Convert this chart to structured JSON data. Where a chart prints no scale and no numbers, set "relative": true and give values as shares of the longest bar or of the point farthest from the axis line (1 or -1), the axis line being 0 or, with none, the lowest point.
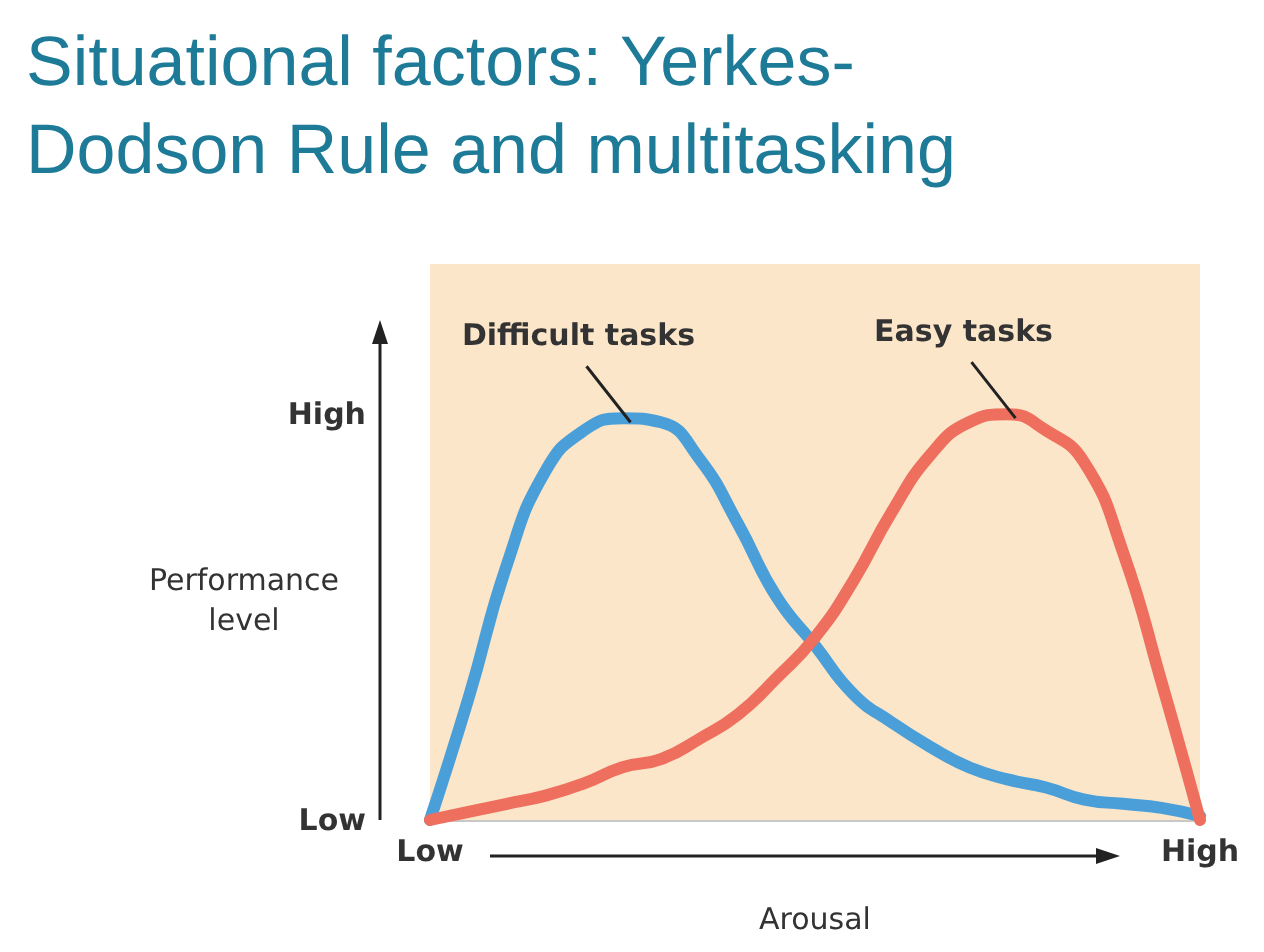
{
  "chart_data": {
    "type": "line",
    "title": "Situational factors: Yerkes-\nDodson Rule and multitasking",
    "xlabel": "Arousal",
    "ylabel": "Performance\nlevel",
    "relative": true,
    "categories": [
      "Low",
      null,
      null,
      null,
      null,
      null,
      null,
      null,
      null,
      null,
      null,
      null,
      null,
      null,
      null,
      null,
      null,
      null,
      null,
      null,
      "High"
    ],
    "grid": false,
    "marker": "none",
    "line_style": "solid",
    "series": [
      {
        "color": "#4a9fd8",
        "values": [
          0,
          0.3,
          0.63,
          0.86,
          0.96,
          0.99,
          0.98,
          0.89,
          0.73,
          0.55,
          0.43,
          0.31,
          0.24,
          0.18,
          0.13,
          0.1,
          0.08,
          0.05,
          0.04,
          0.03,
          0.01
        ]
      },
      {
        "color": "#ef6f5e",
        "values": [
          0,
          0.02,
          0.04,
          0.06,
          0.09,
          0.13,
          0.15,
          0.2,
          0.26,
          0.35,
          0.45,
          0.59,
          0.76,
          0.9,
          0.98,
          1,
          0.96,
          0.88,
          0.66,
          0.34,
          0
        ]
      }
    ],
    "annotations": [
      "Difficult tasks",
      "Easy tasks",
      "High",
      "Low"
    ]
  }
}
